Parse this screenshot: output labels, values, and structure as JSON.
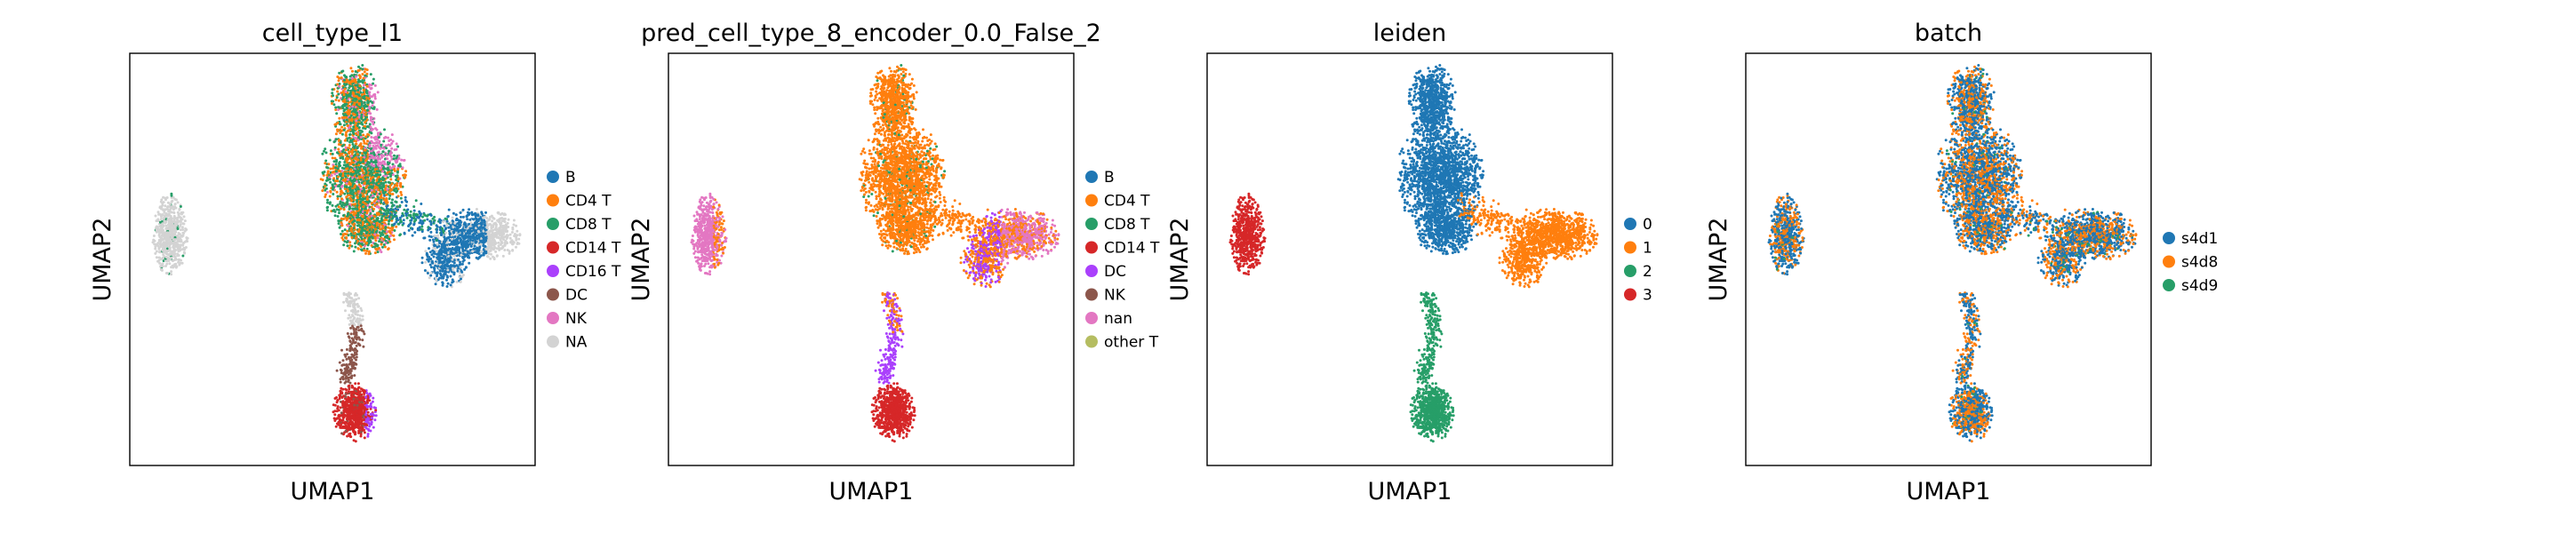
{
  "chart_data": [
    {
      "type": "scatter",
      "title": "cell_type_l1",
      "xlabel": "UMAP1",
      "ylabel": "UMAP2",
      "legend_position": "right",
      "legend": [
        {
          "label": "B",
          "color": "#1f77b4"
        },
        {
          "label": "CD4 T",
          "color": "#ff7f0e"
        },
        {
          "label": "CD8 T",
          "color": "#279e68"
        },
        {
          "label": "CD14 T",
          "color": "#d62728"
        },
        {
          "label": "CD16 T",
          "color": "#aa40fc"
        },
        {
          "label": "DC",
          "color": "#8c564b"
        },
        {
          "label": "NK",
          "color": "#e377c2"
        },
        {
          "label": "NA",
          "color": "#d3d3d3"
        }
      ]
    },
    {
      "type": "scatter",
      "title": "pred_cell_type_8_encoder_0.0_False_2",
      "xlabel": "UMAP1",
      "ylabel": "UMAP2",
      "legend_position": "right",
      "legend": [
        {
          "label": "B",
          "color": "#1f77b4"
        },
        {
          "label": "CD4 T",
          "color": "#ff7f0e"
        },
        {
          "label": "CD8 T",
          "color": "#279e68"
        },
        {
          "label": "CD14 T",
          "color": "#d62728"
        },
        {
          "label": "DC",
          "color": "#aa40fc"
        },
        {
          "label": "NK",
          "color": "#8c564b"
        },
        {
          "label": "nan",
          "color": "#e377c2"
        },
        {
          "label": "other T",
          "color": "#b5bd61"
        }
      ]
    },
    {
      "type": "scatter",
      "title": "leiden",
      "xlabel": "UMAP1",
      "ylabel": "UMAP2",
      "legend_position": "right",
      "legend": [
        {
          "label": "0",
          "color": "#1f77b4"
        },
        {
          "label": "1",
          "color": "#ff7f0e"
        },
        {
          "label": "2",
          "color": "#279e68"
        },
        {
          "label": "3",
          "color": "#d62728"
        }
      ]
    },
    {
      "type": "scatter",
      "title": "batch",
      "xlabel": "UMAP1",
      "ylabel": "UMAP2",
      "legend_position": "right",
      "legend": [
        {
          "label": "s4d1",
          "color": "#1f77b4"
        },
        {
          "label": "s4d8",
          "color": "#ff7f0e"
        },
        {
          "label": "s4d9",
          "color": "#279e68"
        }
      ]
    }
  ]
}
